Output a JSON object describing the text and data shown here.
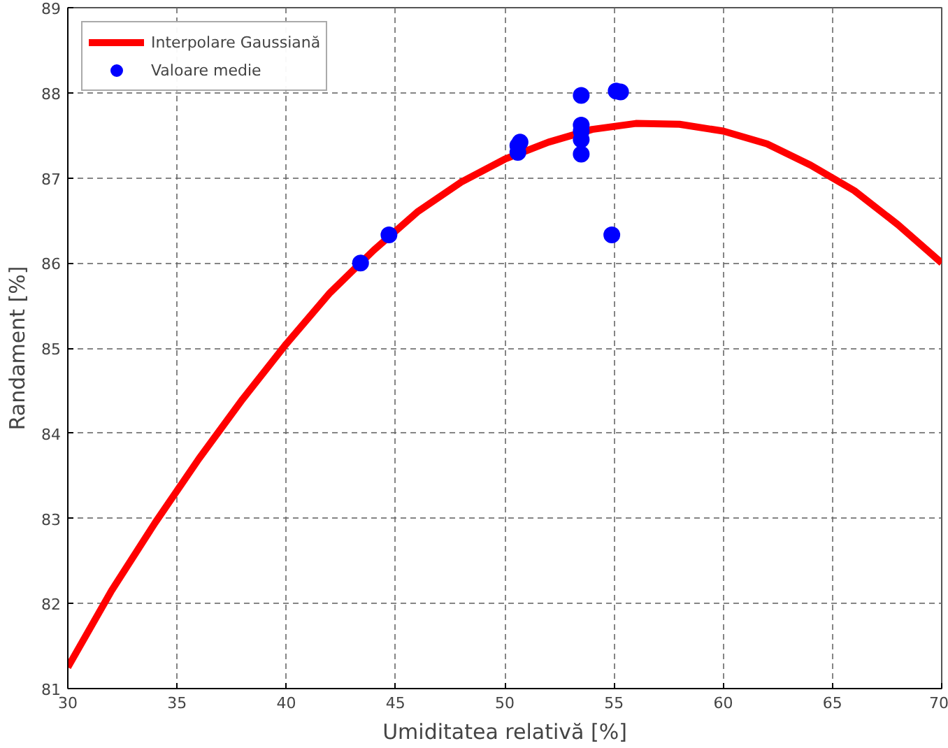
{
  "chart_data": {
    "type": "line",
    "xlabel": "Umiditatea relativă [%]",
    "ylabel": "Randament [%]",
    "xlim": [
      30,
      70
    ],
    "ylim": [
      81,
      89
    ],
    "xticks": [
      30,
      35,
      40,
      45,
      50,
      55,
      60,
      65,
      70
    ],
    "yticks": [
      81,
      82,
      83,
      84,
      85,
      86,
      87,
      88,
      89
    ],
    "grid": true,
    "legend": "top left",
    "series": [
      {
        "name": "Interpolare Gaussiană",
        "color": "#ff0000",
        "x": [
          30,
          32,
          34,
          36,
          38,
          40,
          42,
          44,
          46,
          48,
          50,
          52,
          54,
          56,
          58,
          60,
          62,
          64,
          66,
          68,
          70
        ],
        "values": [
          81.25,
          82.15,
          82.95,
          83.7,
          84.4,
          85.05,
          85.65,
          86.15,
          86.6,
          86.95,
          87.22,
          87.42,
          87.57,
          87.64,
          87.63,
          87.55,
          87.4,
          87.15,
          86.85,
          86.45,
          86.0
        ]
      },
      {
        "name": "Valoare medie",
        "type": "scatter",
        "marker": "circle",
        "color": "#0000ff",
        "x": [
          43.4,
          44.7,
          50.6,
          50.7,
          50.6,
          53.5,
          53.5,
          53.5,
          53.5,
          53.5,
          54.9,
          55.1,
          55.3
        ],
        "values": [
          86.0,
          86.33,
          87.3,
          87.42,
          87.38,
          87.97,
          87.62,
          87.55,
          87.45,
          87.28,
          86.33,
          88.02,
          88.01
        ]
      }
    ]
  }
}
